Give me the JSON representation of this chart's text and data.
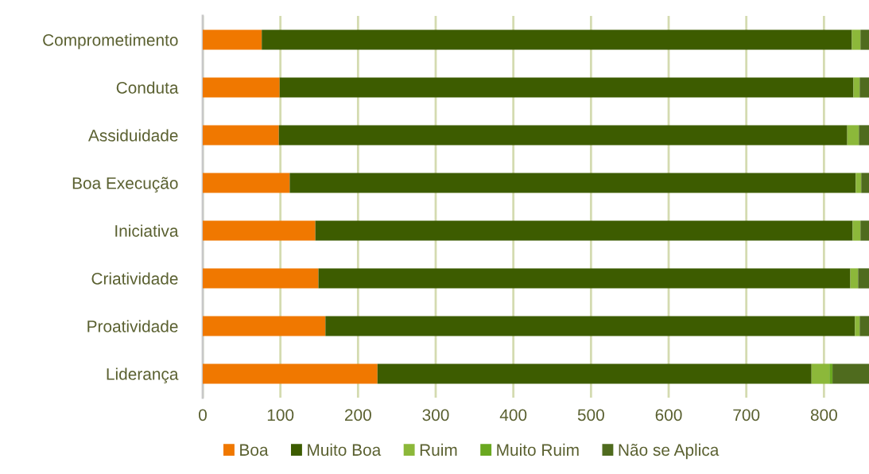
{
  "chart_data": {
    "type": "bar",
    "orientation": "horizontal",
    "stacked": true,
    "categories": [
      "Comprometimento",
      "Conduta",
      "Assiduidade",
      "Boa Execução",
      "Iniciativa",
      "Criatividade",
      "Proatividade",
      "Liderança"
    ],
    "series": [
      {
        "name": "Boa",
        "color": "#f07800",
        "values": [
          76,
          99,
          98,
          112,
          145,
          149,
          158,
          225
        ]
      },
      {
        "name": "Muito Boa",
        "color": "#3d5c00",
        "values": [
          760,
          739,
          732,
          729,
          692,
          685,
          682,
          559
        ]
      },
      {
        "name": "Ruim",
        "color": "#8cb83a",
        "values": [
          11,
          8,
          15,
          7,
          10,
          10,
          6,
          23
        ]
      },
      {
        "name": "Muito Ruim",
        "color": "#6aa820",
        "values": [
          0,
          0,
          0,
          0,
          0,
          0,
          0,
          4
        ]
      },
      {
        "name": "Não se Aplica",
        "color": "#4f6b1e",
        "values": [
          11,
          12,
          13,
          10,
          11,
          14,
          12,
          47
        ]
      }
    ],
    "xlim": [
      0,
      858
    ],
    "xticks": [
      0,
      100,
      200,
      300,
      400,
      500,
      600,
      700,
      800
    ],
    "grid": "x",
    "legend": "bottom"
  }
}
